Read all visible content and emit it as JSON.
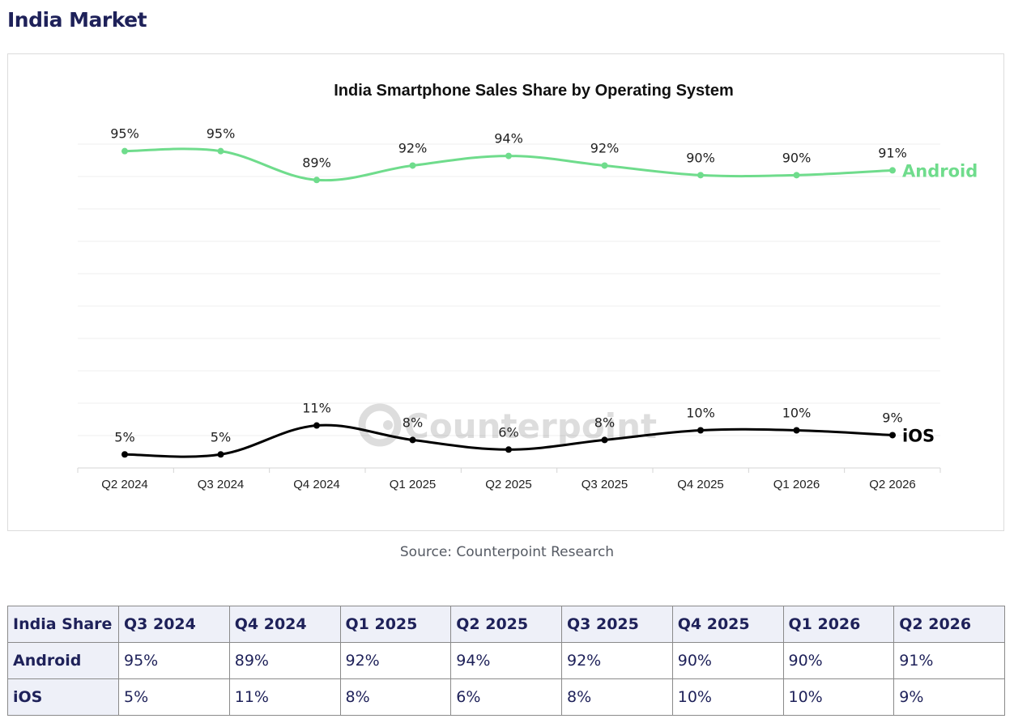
{
  "page": {
    "heading": "India Market",
    "source": "Source: Counterpoint Research"
  },
  "chart_data": {
    "type": "line",
    "title": "India Smartphone Sales Share by Operating System",
    "xlabel": "",
    "ylabel": "",
    "x": [
      "Q2 2024",
      "Q3 2024",
      "Q4 2024",
      "Q1 2025",
      "Q2 2025",
      "Q3 2025",
      "Q4 2025",
      "Q1 2026",
      "Q2 2026"
    ],
    "series": [
      {
        "name": "Android",
        "values": [
          95,
          95,
          89,
          92,
          94,
          92,
          90,
          90,
          91
        ],
        "labels": [
          "95%",
          "95%",
          "89%",
          "92%",
          "94%",
          "92%",
          "90%",
          "90%",
          "91%"
        ],
        "color": "#6fdc8c"
      },
      {
        "name": "iOS",
        "values": [
          5,
          5,
          11,
          8,
          6,
          8,
          10,
          10,
          9
        ],
        "labels": [
          "5%",
          "5%",
          "11%",
          "8%",
          "6%",
          "8%",
          "10%",
          "10%",
          "9%"
        ],
        "color": "#000000"
      }
    ],
    "grid": true,
    "watermark": "Counterpoint"
  },
  "table": {
    "headers": [
      "India Share",
      "Q3 2024",
      "Q4 2024",
      "Q1 2025",
      "Q2 2025",
      "Q3 2025",
      "Q4 2025",
      "Q1 2026",
      "Q2 2026"
    ],
    "rows": [
      {
        "label": "Android",
        "cells": [
          "95%",
          "89%",
          "92%",
          "94%",
          "92%",
          "90%",
          "90%",
          "91%"
        ]
      },
      {
        "label": "iOS",
        "cells": [
          "5%",
          "11%",
          "8%",
          "6%",
          "8%",
          "10%",
          "10%",
          "9%"
        ]
      }
    ]
  }
}
